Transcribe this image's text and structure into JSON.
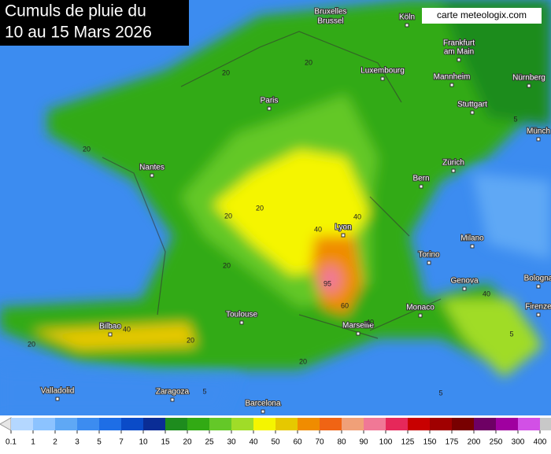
{
  "title": [
    "Cumuls de pluie du",
    "10 au 15 Mars 2026"
  ],
  "credit": "carte meteologix.com",
  "cities": [
    "Bruxelles",
    "Brussel",
    "Köln",
    "Frankfurt",
    "am Main",
    "Luxembourg",
    "Mannheim",
    "Nürnberg",
    "Paris",
    "Stuttgart",
    "Münch",
    "Nantes",
    "Zürich",
    "Bern",
    "Lyon",
    "Milano",
    "Torino",
    "Genova",
    "Bologna",
    "Monaco",
    "Toulouse",
    "Marseille",
    "Firenze",
    "Bilbao",
    "Valladolid",
    "Zaragoza",
    "Barcelona"
  ],
  "contour_labels": [
    20,
    20,
    20,
    20,
    40,
    40,
    95,
    60,
    40,
    20,
    20,
    40,
    5,
    5,
    5,
    20,
    20,
    40,
    20,
    5
  ],
  "legend": {
    "ticks": [
      0.1,
      1,
      2,
      3,
      5,
      7,
      10,
      15,
      20,
      25,
      30,
      40,
      50,
      60,
      70,
      80,
      90,
      100,
      125,
      150,
      175,
      200,
      250,
      300,
      400
    ],
    "colors": [
      "#e6e6e6",
      "#b4d7ff",
      "#8cc3ff",
      "#5fa8f5",
      "#3c8cf0",
      "#1e6ee6",
      "#0a4bc8",
      "#0a2d96",
      "#1e8c1e",
      "#32aa14",
      "#64c828",
      "#a0dc28",
      "#f5f500",
      "#e6c800",
      "#f08c00",
      "#f06414",
      "#f0a078",
      "#f07896",
      "#e6285a",
      "#c80000",
      "#a00000",
      "#780000",
      "#6e0064",
      "#a000a0",
      "#d250e6",
      "#e68cf0",
      "#f0c8f0",
      "#c8c8c8"
    ]
  }
}
